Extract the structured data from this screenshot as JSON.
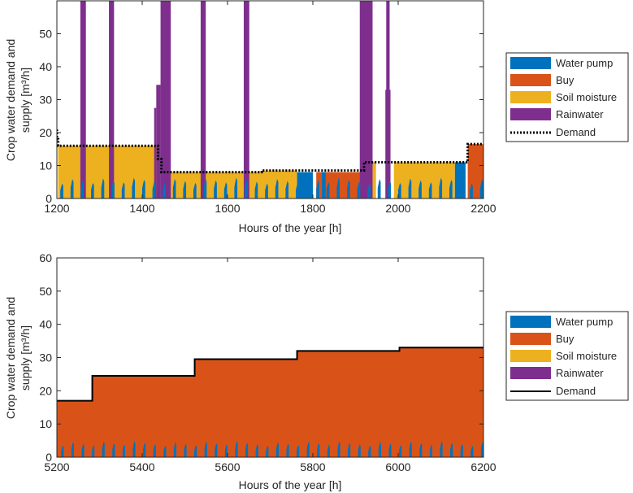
{
  "chart_data": [
    {
      "type": "area",
      "xlabel": "Hours of the year [h]",
      "ylabel": [
        "Crop water demand and",
        "supply [m³/h]"
      ],
      "xlim": [
        1200,
        2200
      ],
      "ylim": [
        0,
        60
      ],
      "xticks": [
        1200,
        1400,
        1600,
        1800,
        2000,
        2200
      ],
      "xtick_labels": [
        "1200",
        "1400",
        "1600",
        "1800",
        "2000",
        "2200"
      ],
      "yticks": [
        0,
        10,
        20,
        30,
        40,
        50
      ],
      "ytick_labels": [
        "0",
        "10",
        "20",
        "30",
        "40",
        "50"
      ],
      "grid": false,
      "demand": {
        "name": "Demand",
        "style": "dotted",
        "x": [
          1200,
          1200,
          1203,
          1203,
          1437,
          1437,
          1445,
          1445,
          1680,
          1680,
          1920,
          1920,
          2163,
          2163,
          2200
        ],
        "y": [
          21,
          18,
          18,
          16,
          16,
          12,
          12,
          8,
          8,
          8.5,
          8.5,
          11,
          11,
          16.5,
          16.5
        ]
      },
      "series": [
        {
          "name": "Water pump",
          "color": "#0072BD",
          "pulses": {
            "start": 1208,
            "end": 2200,
            "period": 24,
            "width": 7,
            "height": 6.5
          },
          "blocks": [
            [
              1763,
              1800,
              8
            ],
            [
              1821,
              1830,
              8
            ],
            [
              2133,
              2158,
              11
            ]
          ]
        },
        {
          "name": "Buy",
          "color": "#D95319",
          "blocks": [
            [
              1808,
              1915,
              8
            ],
            [
              2163,
              2200,
              16.5
            ]
          ]
        },
        {
          "name": "Soil moisture",
          "color": "#EDB120",
          "blocks": [
            [
              1203,
              1437,
              16
            ],
            [
              1445,
              1680,
              8
            ],
            [
              1680,
              1763,
              8.5
            ],
            [
              1940,
              1948,
              11
            ],
            [
              1990,
              2133,
              11
            ]
          ]
        },
        {
          "name": "Rainwater",
          "color": "#7E2F8E",
          "bars": [
            [
              1255,
              1268,
              60
            ],
            [
              1322,
              1334,
              60
            ],
            [
              1428,
              1433,
              27.5
            ],
            [
              1433,
              1443,
              34.5
            ],
            [
              1443,
              1467,
              60
            ],
            [
              1537,
              1549,
              60
            ],
            [
              1638,
              1651,
              60
            ],
            [
              1910,
              1940,
              60
            ],
            [
              1970,
              1982,
              33
            ],
            [
              1972,
              1980,
              60
            ]
          ]
        }
      ],
      "legend": {
        "placement": "right",
        "entries": [
          "Water pump",
          "Buy",
          "Soil moisture",
          "Rainwater",
          "Demand"
        ]
      }
    },
    {
      "type": "area",
      "xlabel": "Hours of the year [h]",
      "ylabel": [
        "Crop water demand and",
        "supply [m³/h]"
      ],
      "xlim": [
        5200,
        6200
      ],
      "ylim": [
        0,
        60
      ],
      "xticks": [
        5200,
        5400,
        5600,
        5800,
        6000,
        6200
      ],
      "xtick_labels": [
        "5200",
        "5400",
        "5600",
        "5800",
        "6000",
        "6200"
      ],
      "yticks": [
        0,
        10,
        20,
        30,
        40,
        50,
        60
      ],
      "ytick_labels": [
        "0",
        "10",
        "20",
        "30",
        "40",
        "50",
        "60"
      ],
      "grid": false,
      "demand": {
        "name": "Demand",
        "style": "solid",
        "x": [
          5200,
          5283,
          5283,
          5523,
          5523,
          5763,
          5763,
          6003,
          6003,
          6200
        ],
        "y": [
          17,
          17,
          24.5,
          24.5,
          29.5,
          29.5,
          32,
          32,
          33,
          33
        ]
      },
      "series": [
        {
          "name": "Water pump",
          "color": "#0072BD",
          "pulses": {
            "start": 5210,
            "end": 6200,
            "period": 24,
            "width": 6,
            "height": 5
          }
        },
        {
          "name": "Buy",
          "color": "#D95319",
          "fills_to_demand": true
        },
        {
          "name": "Soil moisture",
          "color": "#EDB120"
        },
        {
          "name": "Rainwater",
          "color": "#7E2F8E"
        }
      ],
      "legend": {
        "placement": "right",
        "entries": [
          "Water pump",
          "Buy",
          "Soil moisture",
          "Rainwater",
          "Demand"
        ]
      }
    }
  ]
}
